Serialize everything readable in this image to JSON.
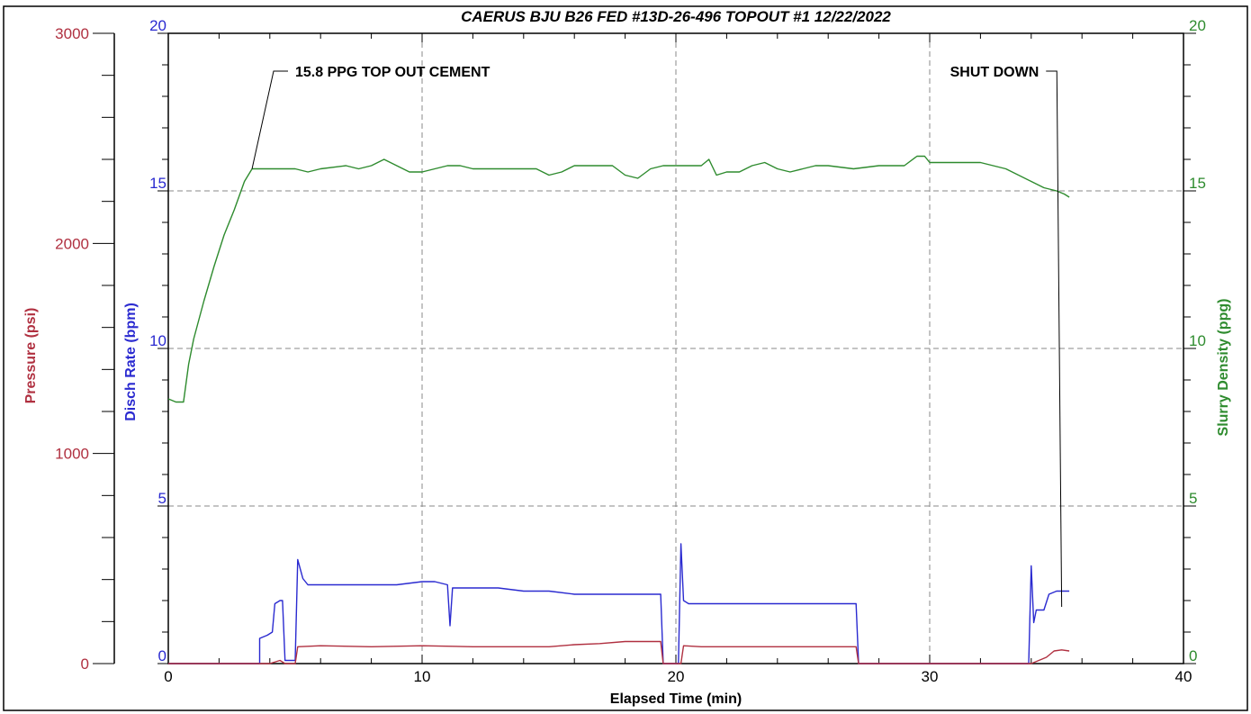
{
  "chart_data": {
    "type": "line",
    "title": "CAERUS BJU B26 FED #13D-26-496 TOPOUT #1  12/22/2022",
    "xlabel": "Elapsed Time (min)",
    "xlim": [
      0,
      40
    ],
    "x_ticks": [
      "0",
      "10",
      "20",
      "30",
      "40"
    ],
    "grid": "dashed at x=10,20,30 and at rate 5,10,15",
    "colors": {
      "pressure": "#b03040",
      "rate": "#2a2ad0",
      "density": "#2e8b2e",
      "frame": "#000000",
      "grid": "#888888"
    },
    "axes": {
      "pressure": {
        "label": "Pressure (psi)",
        "range": [
          0,
          3000
        ],
        "ticks": [
          "0",
          "1000",
          "2000",
          "3000"
        ]
      },
      "rate": {
        "label": "Disch Rate (bpm)",
        "range": [
          0,
          20
        ],
        "ticks": [
          "0",
          "5",
          "10",
          "15",
          "20"
        ]
      },
      "density": {
        "label": "Slurry Density (ppg)",
        "range": [
          0,
          20
        ],
        "ticks": [
          "0",
          "5",
          "10",
          "15",
          "20"
        ]
      }
    },
    "series": [
      {
        "key": "density",
        "axis": "density",
        "values": [
          [
            0,
            8.4
          ],
          [
            0.3,
            8.3
          ],
          [
            0.6,
            8.3
          ],
          [
            0.8,
            9.5
          ],
          [
            1.0,
            10.3
          ],
          [
            1.4,
            11.5
          ],
          [
            1.8,
            12.6
          ],
          [
            2.2,
            13.6
          ],
          [
            2.6,
            14.4
          ],
          [
            3.0,
            15.3
          ],
          [
            3.3,
            15.7
          ],
          [
            4.0,
            15.7
          ],
          [
            5.0,
            15.7
          ],
          [
            5.5,
            15.6
          ],
          [
            6.0,
            15.7
          ],
          [
            7.0,
            15.8
          ],
          [
            7.5,
            15.7
          ],
          [
            8.0,
            15.8
          ],
          [
            8.5,
            16.0
          ],
          [
            9.0,
            15.8
          ],
          [
            9.5,
            15.6
          ],
          [
            10.0,
            15.6
          ],
          [
            10.5,
            15.7
          ],
          [
            11.0,
            15.8
          ],
          [
            11.5,
            15.8
          ],
          [
            12.0,
            15.7
          ],
          [
            13.0,
            15.7
          ],
          [
            14.0,
            15.7
          ],
          [
            14.5,
            15.7
          ],
          [
            15.0,
            15.5
          ],
          [
            15.5,
            15.6
          ],
          [
            16.0,
            15.8
          ],
          [
            17.0,
            15.8
          ],
          [
            17.5,
            15.8
          ],
          [
            18.0,
            15.5
          ],
          [
            18.5,
            15.4
          ],
          [
            19.0,
            15.7
          ],
          [
            19.5,
            15.8
          ],
          [
            20.0,
            15.8
          ],
          [
            21.0,
            15.8
          ],
          [
            21.3,
            16.0
          ],
          [
            21.6,
            15.5
          ],
          [
            22.0,
            15.6
          ],
          [
            22.5,
            15.6
          ],
          [
            23.0,
            15.8
          ],
          [
            23.5,
            15.9
          ],
          [
            24.0,
            15.7
          ],
          [
            24.5,
            15.6
          ],
          [
            25.0,
            15.7
          ],
          [
            25.5,
            15.8
          ],
          [
            26.0,
            15.8
          ],
          [
            27.0,
            15.7
          ],
          [
            28.0,
            15.8
          ],
          [
            29.0,
            15.8
          ],
          [
            29.5,
            16.1
          ],
          [
            29.8,
            16.1
          ],
          [
            30.0,
            15.9
          ],
          [
            31.0,
            15.9
          ],
          [
            32.0,
            15.9
          ],
          [
            33.0,
            15.7
          ],
          [
            34.0,
            15.3
          ],
          [
            34.5,
            15.1
          ],
          [
            35.0,
            15.0
          ],
          [
            35.3,
            14.9
          ],
          [
            35.5,
            14.8
          ]
        ]
      },
      {
        "key": "rate",
        "axis": "rate",
        "values": [
          [
            0,
            0
          ],
          [
            3.6,
            0
          ],
          [
            3.6,
            0.8
          ],
          [
            3.9,
            0.9
          ],
          [
            4.1,
            1.0
          ],
          [
            4.2,
            1.9
          ],
          [
            4.4,
            2.0
          ],
          [
            4.5,
            2.0
          ],
          [
            4.6,
            0.1
          ],
          [
            5.0,
            0.1
          ],
          [
            5.1,
            3.3
          ],
          [
            5.3,
            2.7
          ],
          [
            5.5,
            2.5
          ],
          [
            7.0,
            2.5
          ],
          [
            8.0,
            2.5
          ],
          [
            9.0,
            2.5
          ],
          [
            10.0,
            2.6
          ],
          [
            10.5,
            2.6
          ],
          [
            11.0,
            2.5
          ],
          [
            11.1,
            1.2
          ],
          [
            11.2,
            2.4
          ],
          [
            12.0,
            2.4
          ],
          [
            13.0,
            2.4
          ],
          [
            14.0,
            2.3
          ],
          [
            15.0,
            2.3
          ],
          [
            16.0,
            2.2
          ],
          [
            17.0,
            2.2
          ],
          [
            18.0,
            2.2
          ],
          [
            19.4,
            2.2
          ],
          [
            19.5,
            0
          ],
          [
            20.1,
            0
          ],
          [
            20.2,
            3.8
          ],
          [
            20.3,
            2.0
          ],
          [
            20.5,
            1.9
          ],
          [
            22.0,
            1.9
          ],
          [
            24.0,
            1.9
          ],
          [
            26.0,
            1.9
          ],
          [
            27.1,
            1.9
          ],
          [
            27.2,
            0
          ],
          [
            33.9,
            0
          ],
          [
            34.0,
            3.1
          ],
          [
            34.1,
            1.3
          ],
          [
            34.2,
            1.7
          ],
          [
            34.5,
            1.7
          ],
          [
            34.7,
            2.2
          ],
          [
            35.0,
            2.3
          ],
          [
            35.5,
            2.3
          ]
        ]
      },
      {
        "key": "pressure",
        "axis": "pressure",
        "values": [
          [
            0,
            0
          ],
          [
            4.0,
            0
          ],
          [
            4.4,
            15
          ],
          [
            4.6,
            0
          ],
          [
            5.0,
            0
          ],
          [
            5.1,
            80
          ],
          [
            6.0,
            85
          ],
          [
            8.0,
            80
          ],
          [
            10.0,
            85
          ],
          [
            12.0,
            80
          ],
          [
            14.0,
            80
          ],
          [
            15.0,
            80
          ],
          [
            16.0,
            90
          ],
          [
            17.0,
            95
          ],
          [
            18.0,
            105
          ],
          [
            19.4,
            105
          ],
          [
            19.5,
            0
          ],
          [
            20.2,
            0
          ],
          [
            20.3,
            85
          ],
          [
            21.0,
            80
          ],
          [
            23.0,
            80
          ],
          [
            25.0,
            80
          ],
          [
            27.1,
            80
          ],
          [
            27.2,
            0
          ],
          [
            34.0,
            0
          ],
          [
            34.3,
            15
          ],
          [
            34.6,
            30
          ],
          [
            34.9,
            60
          ],
          [
            35.2,
            65
          ],
          [
            35.5,
            60
          ]
        ]
      }
    ],
    "annotations": [
      {
        "text": "15.8 PPG TOP OUT CEMENT",
        "x": 3.3,
        "density": 15.7,
        "label_x": 5.0,
        "label_density": 18.8
      },
      {
        "text": "SHUT DOWN",
        "x": 35.2,
        "rate": 1.8,
        "label_x": 34.3,
        "label_rate": 18.8
      }
    ]
  }
}
